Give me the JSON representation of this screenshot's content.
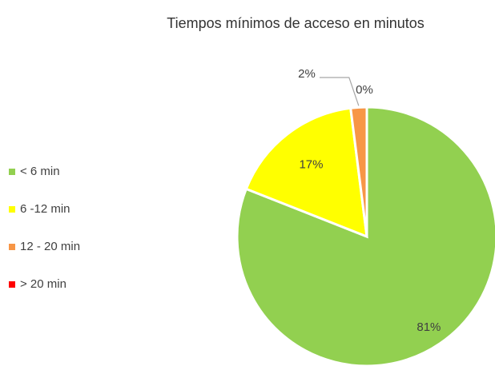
{
  "chart_data": {
    "type": "pie",
    "title": "Tiempos mínimos de acceso en minutos",
    "categories": [
      "< 6 min",
      "6 -12 min",
      "12 - 20 min",
      "> 20 min"
    ],
    "values": [
      81,
      17,
      2,
      0
    ],
    "value_labels": [
      "81%",
      "17%",
      "2%",
      "0%"
    ],
    "colors": [
      "#92d050",
      "#ffff00",
      "#f79646",
      "#ff0000"
    ],
    "legend": "left"
  }
}
